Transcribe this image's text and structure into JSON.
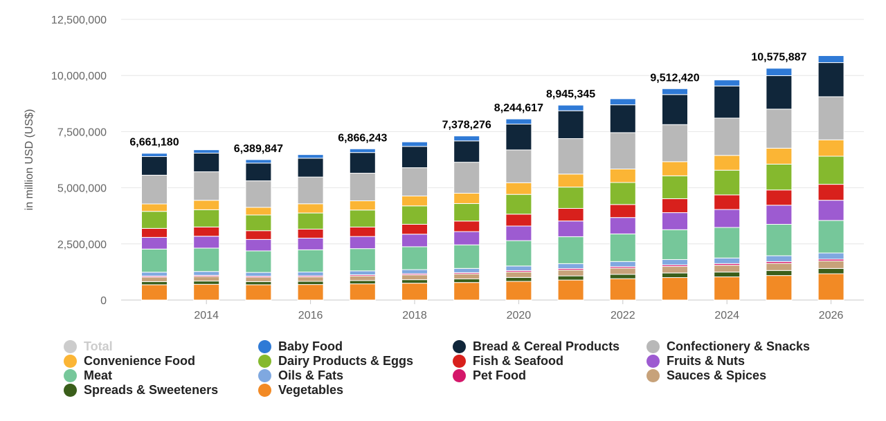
{
  "chart_data": {
    "type": "bar",
    "stacked": true,
    "ylabel": "in million USD (US$)",
    "y_ticks": [
      "0",
      "2,500,000",
      "5,000,000",
      "7,500,000",
      "10,000,000",
      "12,500,000"
    ],
    "ylim": [
      0,
      12500000
    ],
    "x_tick_labels": [
      "2014",
      "2016",
      "2018",
      "2020",
      "2022",
      "2024",
      "2026"
    ],
    "categories": [
      "2013",
      "2014",
      "2015",
      "2016",
      "2017",
      "2018",
      "2019",
      "2020",
      "2021",
      "2022",
      "2023",
      "2024",
      "2025",
      "2026"
    ],
    "grid": "horizontal",
    "legend_position": "bottom",
    "total_labels": [
      {
        "category": "2013",
        "text": "6,661,180"
      },
      {
        "category": "2015",
        "text": "6,389,847"
      },
      {
        "category": "2017",
        "text": "6,866,243"
      },
      {
        "category": "2019",
        "text": "7,378,276"
      },
      {
        "category": "2020",
        "text": "8,244,617"
      },
      {
        "category": "2021",
        "text": "8,945,345"
      },
      {
        "category": "2023",
        "text": "9,512,420"
      },
      {
        "category": "2025",
        "text": "10,575,887"
      }
    ],
    "series": [
      {
        "name": "Vegetables",
        "color": "#f28a25",
        "values": [
          680000,
          700000,
          680000,
          690000,
          720000,
          750000,
          780000,
          830000,
          890000,
          950000,
          1000000,
          1030000,
          1090000,
          1170000
        ]
      },
      {
        "name": "Spreads & Sweeteners",
        "color": "#3a5e1a",
        "values": [
          140000,
          145000,
          140000,
          142000,
          148000,
          155000,
          160000,
          175000,
          185000,
          195000,
          205000,
          215000,
          225000,
          235000
        ]
      },
      {
        "name": "Sauces & Spices",
        "color": "#c7a27a",
        "values": [
          200000,
          205000,
          195000,
          198000,
          205000,
          215000,
          225000,
          245000,
          262000,
          275000,
          290000,
          305000,
          320000,
          335000
        ]
      },
      {
        "name": "Pet Food",
        "color": "#d4176a",
        "values": [
          50000,
          50000,
          48000,
          49000,
          51000,
          53000,
          55000,
          60000,
          64000,
          67000,
          70000,
          73000,
          76000,
          80000
        ]
      },
      {
        "name": "Oils & Fats",
        "color": "#7fa8e0",
        "values": [
          170000,
          172000,
          165000,
          168000,
          175000,
          180000,
          187000,
          205000,
          219000,
          227000,
          237000,
          249000,
          261000,
          274000
        ]
      },
      {
        "name": "Meat",
        "color": "#76c79a",
        "values": [
          1030000,
          1040000,
          960000,
          990000,
          990000,
          1020000,
          1050000,
          1130000,
          1200000,
          1230000,
          1330000,
          1360000,
          1400000,
          1450000
        ]
      },
      {
        "name": "Fruits & Nuts",
        "color": "#9d5bd1",
        "values": [
          520000,
          530000,
          510000,
          520000,
          540000,
          560000,
          590000,
          650000,
          700000,
          730000,
          760000,
          800000,
          850000,
          900000
        ]
      },
      {
        "name": "Fish & Seafood",
        "color": "#d8201c",
        "values": [
          400000,
          410000,
          390000,
          400000,
          420000,
          440000,
          470000,
          530000,
          560000,
          580000,
          620000,
          650000,
          680000,
          710000
        ]
      },
      {
        "name": "Dairy Products & Eggs",
        "color": "#85b92e",
        "values": [
          760000,
          770000,
          700000,
          720000,
          760000,
          820000,
          780000,
          880000,
          950000,
          980000,
          1020000,
          1100000,
          1150000,
          1250000
        ]
      },
      {
        "name": "Convenience Food",
        "color": "#fbb535",
        "values": [
          330000,
          420000,
          340000,
          410000,
          410000,
          440000,
          460000,
          520000,
          580000,
          600000,
          630000,
          660000,
          710000,
          730000
        ]
      },
      {
        "name": "Confectionery & Snacks",
        "color": "#b8b8b8",
        "values": [
          1280000,
          1270000,
          1180000,
          1190000,
          1230000,
          1260000,
          1380000,
          1460000,
          1580000,
          1620000,
          1650000,
          1660000,
          1740000,
          1920000
        ]
      },
      {
        "name": "Bread & Cereal Products",
        "color": "#10263a",
        "values": [
          830000,
          830000,
          790000,
          840000,
          920000,
          950000,
          950000,
          1150000,
          1240000,
          1240000,
          1340000,
          1430000,
          1490000,
          1520000
        ]
      },
      {
        "name": "Baby Food",
        "color": "#2f7ad6",
        "values": [
          145000,
          150000,
          155000,
          160000,
          165000,
          200000,
          220000,
          230000,
          250000,
          270000,
          260000,
          270000,
          330000,
          310000
        ]
      }
    ]
  },
  "legend": {
    "items": [
      {
        "name": "Total",
        "color": "#cccccc",
        "active": false
      },
      {
        "name": "Baby Food",
        "color": "#2f7ad6",
        "active": true
      },
      {
        "name": "Bread & Cereal Products",
        "color": "#10263a",
        "active": true
      },
      {
        "name": "Confectionery & Snacks",
        "color": "#b8b8b8",
        "active": true
      },
      {
        "name": "Convenience Food",
        "color": "#fbb535",
        "active": true
      },
      {
        "name": "Dairy Products & Eggs",
        "color": "#85b92e",
        "active": true
      },
      {
        "name": "Fish & Seafood",
        "color": "#d8201c",
        "active": true
      },
      {
        "name": "Fruits & Nuts",
        "color": "#9d5bd1",
        "active": true
      },
      {
        "name": "Meat",
        "color": "#76c79a",
        "active": true
      },
      {
        "name": "Oils & Fats",
        "color": "#7fa8e0",
        "active": true
      },
      {
        "name": "Pet Food",
        "color": "#d4176a",
        "active": true
      },
      {
        "name": "Sauces & Spices",
        "color": "#c7a27a",
        "active": true
      },
      {
        "name": "Spreads & Sweeteners",
        "color": "#3a5e1a",
        "active": true
      },
      {
        "name": "Vegetables",
        "color": "#f28a25",
        "active": true
      }
    ]
  }
}
